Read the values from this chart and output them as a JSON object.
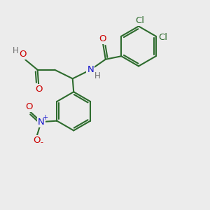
{
  "bg_color": "#ececec",
  "bond_color": "#2d6b2d",
  "bond_width": 1.5,
  "atom_colors": {
    "O": "#cc0000",
    "N": "#1414cc",
    "Cl": "#2d6b2d",
    "H": "#707070",
    "C": "#000000"
  },
  "font_size": 9.5,
  "xlim": [
    0,
    10
  ],
  "ylim": [
    0,
    10
  ]
}
